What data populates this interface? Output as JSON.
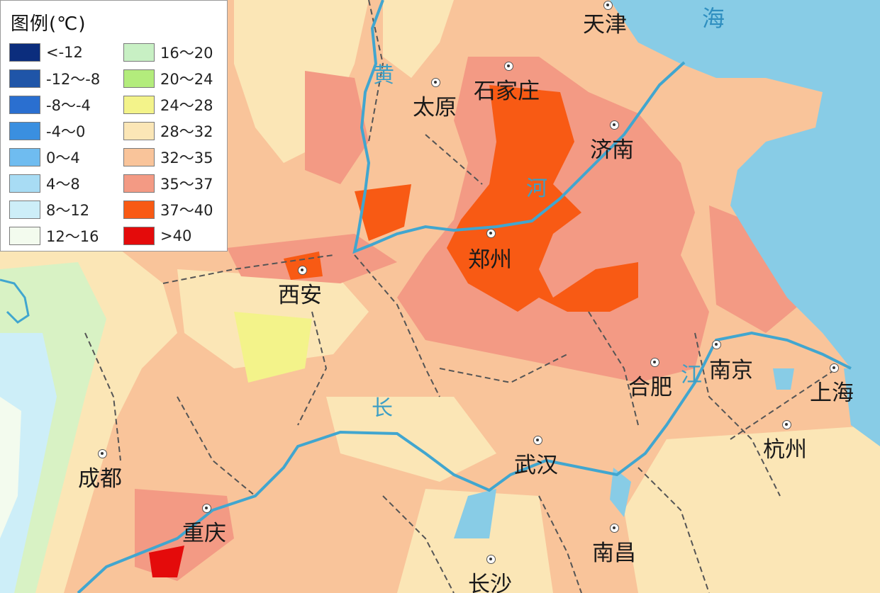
{
  "legend": {
    "title": "图例(℃)",
    "items": [
      {
        "label": "<-12",
        "color": "#0b2d7d"
      },
      {
        "label": "-12～-8",
        "color": "#1f55a8"
      },
      {
        "label": "-8～-4",
        "color": "#2a6fd0"
      },
      {
        "label": "-4～0",
        "color": "#3a8fe0"
      },
      {
        "label": "0～4",
        "color": "#6fbcf0"
      },
      {
        "label": "4～8",
        "color": "#a8dcf4"
      },
      {
        "label": "8～12",
        "color": "#cdeef8"
      },
      {
        "label": "12～16",
        "color": "#f3fbee"
      },
      {
        "label": "16～20",
        "color": "#c8f0c4"
      },
      {
        "label": "20～24",
        "color": "#b3ec7c"
      },
      {
        "label": "24～28",
        "color": "#f3f38a"
      },
      {
        "label": "28～32",
        "color": "#fbe6b6"
      },
      {
        "label": "32～35",
        "color": "#f9c49a"
      },
      {
        "label": "35～37",
        "color": "#f39a84"
      },
      {
        "label": "37～40",
        "color": "#f85a14"
      },
      {
        "label": ">40",
        "color": "#e40b0b"
      }
    ]
  },
  "cities": [
    {
      "name": "天津"
    },
    {
      "name": "石家庄"
    },
    {
      "name": "太原"
    },
    {
      "name": "济南"
    },
    {
      "name": "郑州"
    },
    {
      "name": "西安"
    },
    {
      "name": "合肥"
    },
    {
      "name": "南京"
    },
    {
      "name": "上海"
    },
    {
      "name": "杭州"
    },
    {
      "name": "武汉"
    },
    {
      "name": "成都"
    },
    {
      "name": "重庆"
    },
    {
      "name": "南昌"
    },
    {
      "name": "长沙"
    }
  ],
  "rivers": {
    "huang_1": "黄",
    "huang_2": "河",
    "chang_1": "长",
    "chang_2": "江"
  },
  "sea": "海",
  "colors": {
    "sea": "#88cce6",
    "river": "#41a6cf",
    "border": "#555555"
  }
}
